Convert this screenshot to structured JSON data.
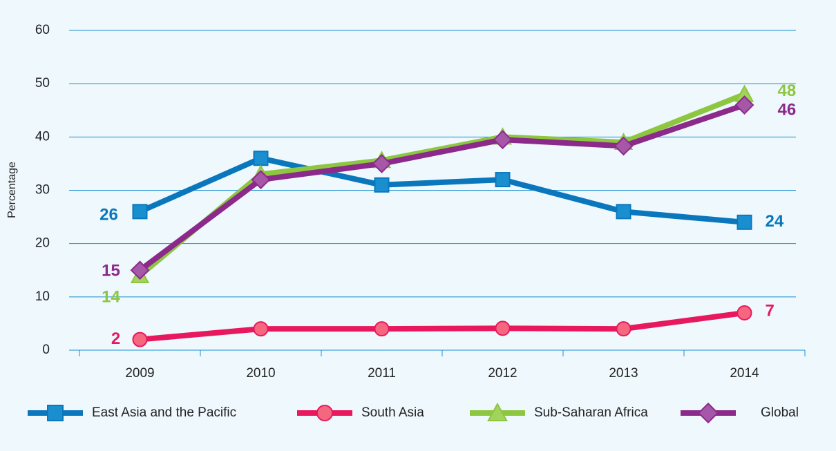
{
  "chart_data": {
    "type": "line",
    "y_label": "Percentage",
    "categories": [
      "2009",
      "2010",
      "2011",
      "2012",
      "2013",
      "2014"
    ],
    "ylim": [
      0,
      60
    ],
    "yticks": [
      0,
      10,
      20,
      30,
      40,
      50,
      60
    ],
    "grid": true,
    "legend": "bottom",
    "data_labels": "first-last",
    "series": [
      {
        "name": "East Asia and the Pacific",
        "color": "#0a77bd",
        "fill": "#1a8fd0",
        "marker": "square",
        "values": [
          26,
          36,
          31,
          32,
          26,
          24
        ]
      },
      {
        "name": "South Asia",
        "color": "#e8185f",
        "fill": "#f4677f",
        "marker": "circle",
        "values": [
          2,
          4,
          4,
          4.1,
          4,
          7
        ]
      },
      {
        "name": "Sub-Saharan Africa",
        "color": "#8dc63f",
        "fill": "#a2d35c",
        "marker": "triangle",
        "values": [
          14,
          33,
          35.6,
          40,
          39,
          48
        ]
      },
      {
        "name": "Global",
        "color": "#8b2a8b",
        "fill": "#a757a7",
        "marker": "diamond",
        "values": [
          15,
          32,
          35,
          39.5,
          38.3,
          46
        ]
      }
    ]
  }
}
